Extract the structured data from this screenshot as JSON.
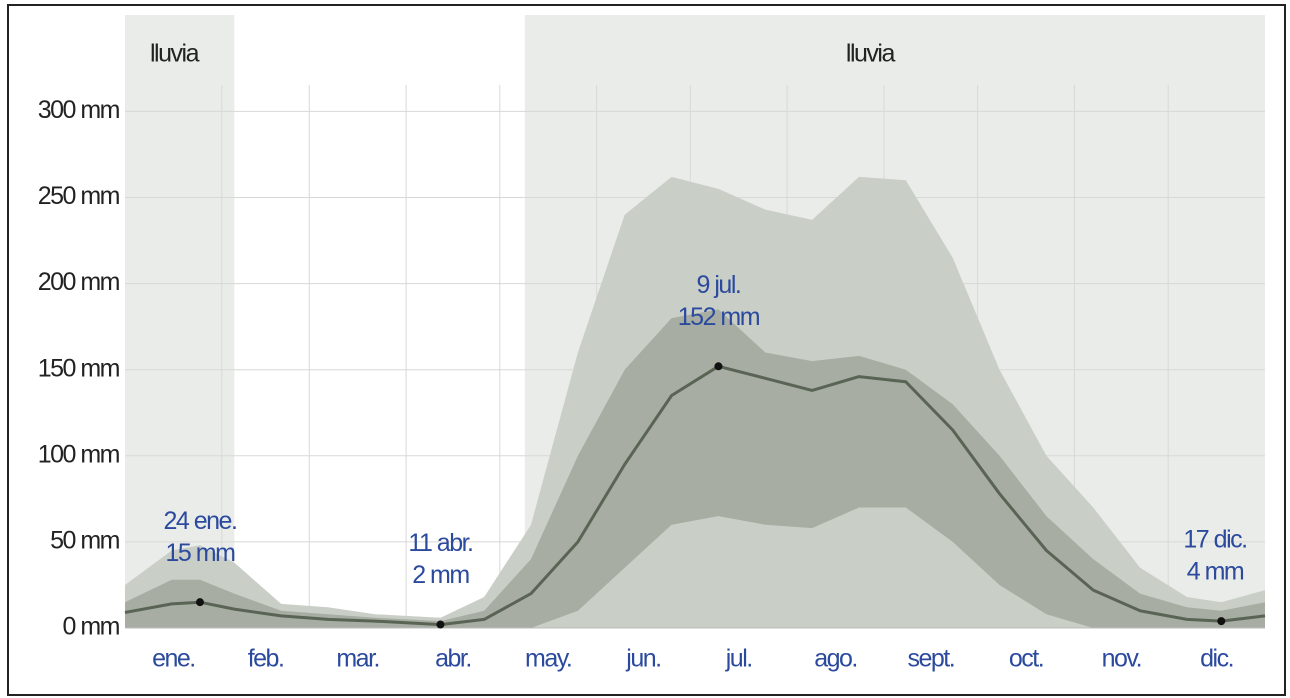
{
  "chart_data": {
    "type": "area-band",
    "xlim": [
      0,
      365
    ],
    "ylim": [
      0,
      356
    ],
    "yticks": [
      {
        "value": 0,
        "label": "0 mm"
      },
      {
        "value": 50,
        "label": "50 mm"
      },
      {
        "value": 100,
        "label": "100 mm"
      },
      {
        "value": 150,
        "label": "150 mm"
      },
      {
        "value": 200,
        "label": "200 mm"
      },
      {
        "value": 250,
        "label": "250 mm"
      },
      {
        "value": 300,
        "label": "300 mm"
      }
    ],
    "xticks": [
      {
        "value": 15.5,
        "label": "ene."
      },
      {
        "value": 45,
        "label": "feb."
      },
      {
        "value": 74.5,
        "label": "mar."
      },
      {
        "value": 105,
        "label": "abr."
      },
      {
        "value": 135.5,
        "label": "may."
      },
      {
        "value": 166,
        "label": "jun."
      },
      {
        "value": 196.5,
        "label": "jul."
      },
      {
        "value": 227.5,
        "label": "ago."
      },
      {
        "value": 258,
        "label": "sept."
      },
      {
        "value": 288.5,
        "label": "oct."
      },
      {
        "value": 319,
        "label": "nov."
      },
      {
        "value": 349.5,
        "label": "dic."
      }
    ],
    "xgrid": [
      31,
      59,
      90,
      120,
      151,
      181,
      212,
      243,
      273,
      304,
      334
    ],
    "grid": true,
    "shaded_periods": [
      {
        "start": 0,
        "end": 35,
        "label": "lluvia",
        "color": "#e9ece9"
      },
      {
        "start": 128,
        "end": 365,
        "label": "lluvia",
        "color": "#e9ece9"
      }
    ],
    "x": [
      0,
      15,
      24,
      35,
      50,
      65,
      80,
      101,
      115,
      130,
      145,
      160,
      175,
      190,
      205,
      220,
      235,
      250,
      265,
      280,
      295,
      310,
      325,
      340,
      351,
      365
    ],
    "bands": [
      {
        "color": "#c9cec7",
        "low": [
          0,
          0,
          0,
          0,
          0,
          0,
          0,
          0,
          0,
          0,
          0,
          0,
          0,
          0,
          0,
          0,
          0,
          0,
          0,
          0,
          0,
          0,
          0,
          0,
          0,
          0
        ],
        "high": [
          25,
          45,
          48,
          38,
          14,
          12,
          8,
          6,
          18,
          60,
          160,
          240,
          262,
          255,
          243,
          237,
          262,
          260,
          215,
          150,
          100,
          70,
          35,
          18,
          15,
          22
        ]
      },
      {
        "color": "#a7ada3",
        "low": [
          0,
          0,
          0,
          0,
          0,
          0,
          0,
          0,
          0,
          0,
          10,
          35,
          60,
          65,
          60,
          58,
          70,
          70,
          50,
          25,
          8,
          0,
          0,
          0,
          0,
          0
        ],
        "high": [
          15,
          28,
          28,
          20,
          10,
          8,
          6,
          4,
          10,
          40,
          100,
          150,
          180,
          185,
          160,
          155,
          158,
          150,
          130,
          100,
          65,
          40,
          20,
          12,
          10,
          15
        ]
      }
    ],
    "series": [
      {
        "color": "#5a6455",
        "values": [
          9,
          14,
          15,
          11,
          7,
          5,
          4,
          2,
          5,
          20,
          50,
          95,
          135,
          152,
          145,
          138,
          146,
          143,
          115,
          78,
          45,
          22,
          10,
          5,
          4,
          7
        ]
      }
    ],
    "annotations": [
      {
        "x": 24,
        "y": 15,
        "date_label": "24 ene.",
        "value_label": "15 mm"
      },
      {
        "x": 101,
        "y": 2,
        "date_label": "11 abr.",
        "value_label": "2 mm"
      },
      {
        "x": 190,
        "y": 152,
        "date_label": "9 jul.",
        "value_label": "152 mm"
      },
      {
        "x": 351,
        "y": 4,
        "date_label": "17 dic.",
        "value_label": "4 mm"
      }
    ]
  }
}
